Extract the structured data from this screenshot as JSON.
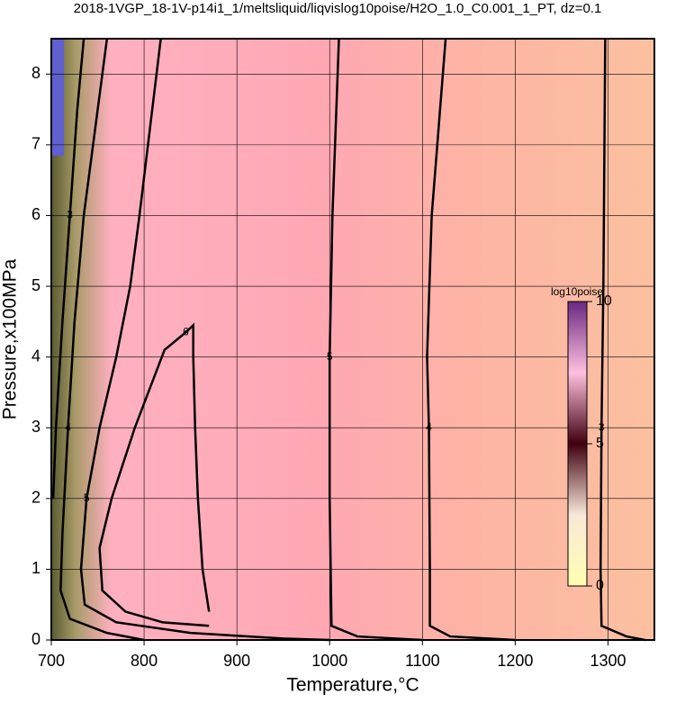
{
  "chart_data": {
    "type": "contour",
    "title": "2018-1VGP_18-1V-p14i1_1/meltsliquid/liqvislog10poise/H2O_1.0_C0.001_1_PT, dz=0.1",
    "x_label": "Temperature,°C",
    "y_label": "Pressure,x100MPa",
    "xlim": [
      700,
      1350
    ],
    "ylim": [
      0,
      8.5
    ],
    "xticks": [
      700,
      800,
      900,
      1000,
      1100,
      1200,
      1300
    ],
    "yticks": [
      0,
      1,
      2,
      3,
      4,
      5,
      6,
      7,
      8
    ],
    "grid": true,
    "contours": [
      {
        "level": 3,
        "x": [
          1297,
          1295,
          1293,
          1292,
          1293,
          1320,
          1340
        ],
        "y": [
          8.5,
          5,
          3,
          1,
          0.2,
          0.05,
          0
        ]
      },
      {
        "level": 4,
        "x": [
          1125,
          1110,
          1105,
          1107,
          1108,
          1108,
          1130,
          1200
        ],
        "y": [
          8.5,
          6,
          4,
          3,
          1,
          0.2,
          0.05,
          0
        ]
      },
      {
        "level": 5,
        "x": [
          1010,
          1003,
          1000,
          1000,
          1002,
          1030,
          1100
        ],
        "y": [
          8.5,
          6,
          4,
          2,
          0.2,
          0.05,
          0
        ]
      },
      {
        "level": 5,
        "x": [
          818,
          795,
          785,
          770,
          752,
          738,
          732,
          736,
          770,
          850,
          950,
          1000
        ],
        "y": [
          8.5,
          6,
          5,
          4,
          3,
          2,
          1,
          0.5,
          0.25,
          0.1,
          0.02,
          0
        ]
      },
      {
        "level": 6,
        "x": [
          870,
          863,
          858,
          855,
          853,
          853,
          845,
          822,
          790,
          765,
          752,
          755,
          780,
          820,
          870
        ],
        "y": [
          0.4,
          1,
          2,
          3,
          4,
          4.45,
          4.35,
          4.1,
          3,
          2,
          1.3,
          0.7,
          0.4,
          0.25,
          0.2
        ]
      },
      {
        "level": 4,
        "x": [
          760,
          745,
          735,
          725,
          718,
          712,
          710,
          720,
          760,
          800
        ],
        "y": [
          8.5,
          7,
          6,
          4.5,
          3,
          1.5,
          0.7,
          0.3,
          0.1,
          0
        ]
      },
      {
        "level": 3,
        "x": [
          735,
          728,
          720,
          712,
          705,
          702
        ],
        "y": [
          8.5,
          7.5,
          6,
          4.5,
          3,
          2
        ]
      }
    ],
    "colorbar": {
      "label": "log10poise",
      "lim": [
        0,
        10
      ],
      "ticks": [
        0,
        5,
        10
      ]
    }
  }
}
